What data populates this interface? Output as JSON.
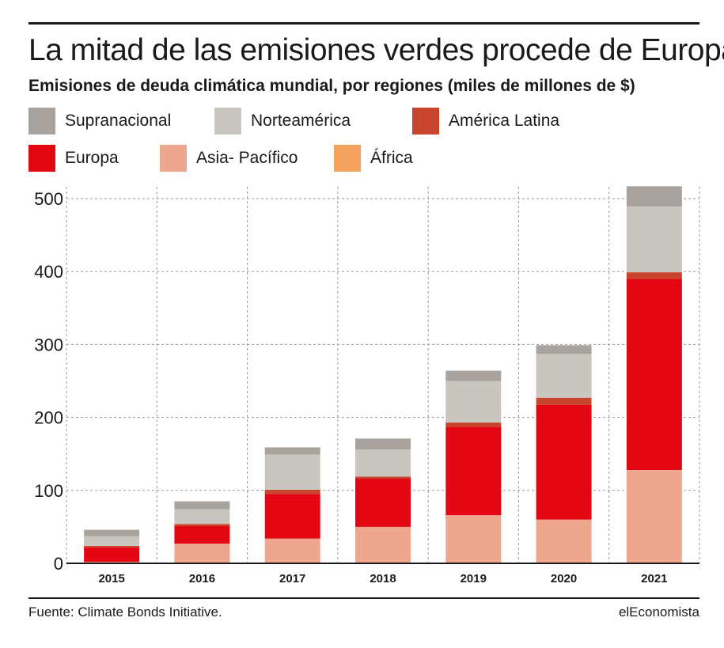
{
  "colors": {
    "Supranacional": "#a8a39e",
    "Norteamérica": "#c9c6c0",
    "América Latina": "#c9442c",
    "Europa": "#e30613",
    "Asia- Pacífico": "#efa68f",
    "África": "#f4a35f"
  },
  "chart_data": {
    "type": "bar",
    "stacked": true,
    "title": "La mitad de las emisiones verdes procede de Europa",
    "subtitle": "Emisiones de deuda climática mundial, por regiones (miles de millones de $)",
    "categories": [
      "2015",
      "2016",
      "2017",
      "2018",
      "2019",
      "2020",
      "2021"
    ],
    "series": [
      {
        "name": "Asia- Pacífico",
        "values": [
          2,
          27,
          34,
          50,
          66,
          60,
          128
        ]
      },
      {
        "name": "África",
        "values": [
          0,
          0,
          0,
          0,
          0,
          0,
          0
        ]
      },
      {
        "name": "Europa",
        "values": [
          20,
          24,
          61,
          66,
          121,
          157,
          262
        ]
      },
      {
        "name": "América Latina",
        "values": [
          2,
          3,
          6,
          3,
          6,
          10,
          9
        ]
      },
      {
        "name": "Norteamérica",
        "values": [
          13,
          20,
          48,
          37,
          57,
          60,
          90
        ]
      },
      {
        "name": "Supranacional",
        "values": [
          9,
          11,
          10,
          15,
          14,
          12,
          28
        ]
      }
    ],
    "legend_order": [
      "Supranacional",
      "Norteamérica",
      "América Latina",
      "Europa",
      "Asia- Pacífico",
      "África"
    ],
    "yticks": [
      0,
      100,
      200,
      300,
      400,
      500
    ],
    "ylim": [
      0,
      520
    ],
    "grid": true,
    "legend_position": "top"
  },
  "source": "Fuente: Climate Bonds Initiative.",
  "brand": "elEconomista"
}
